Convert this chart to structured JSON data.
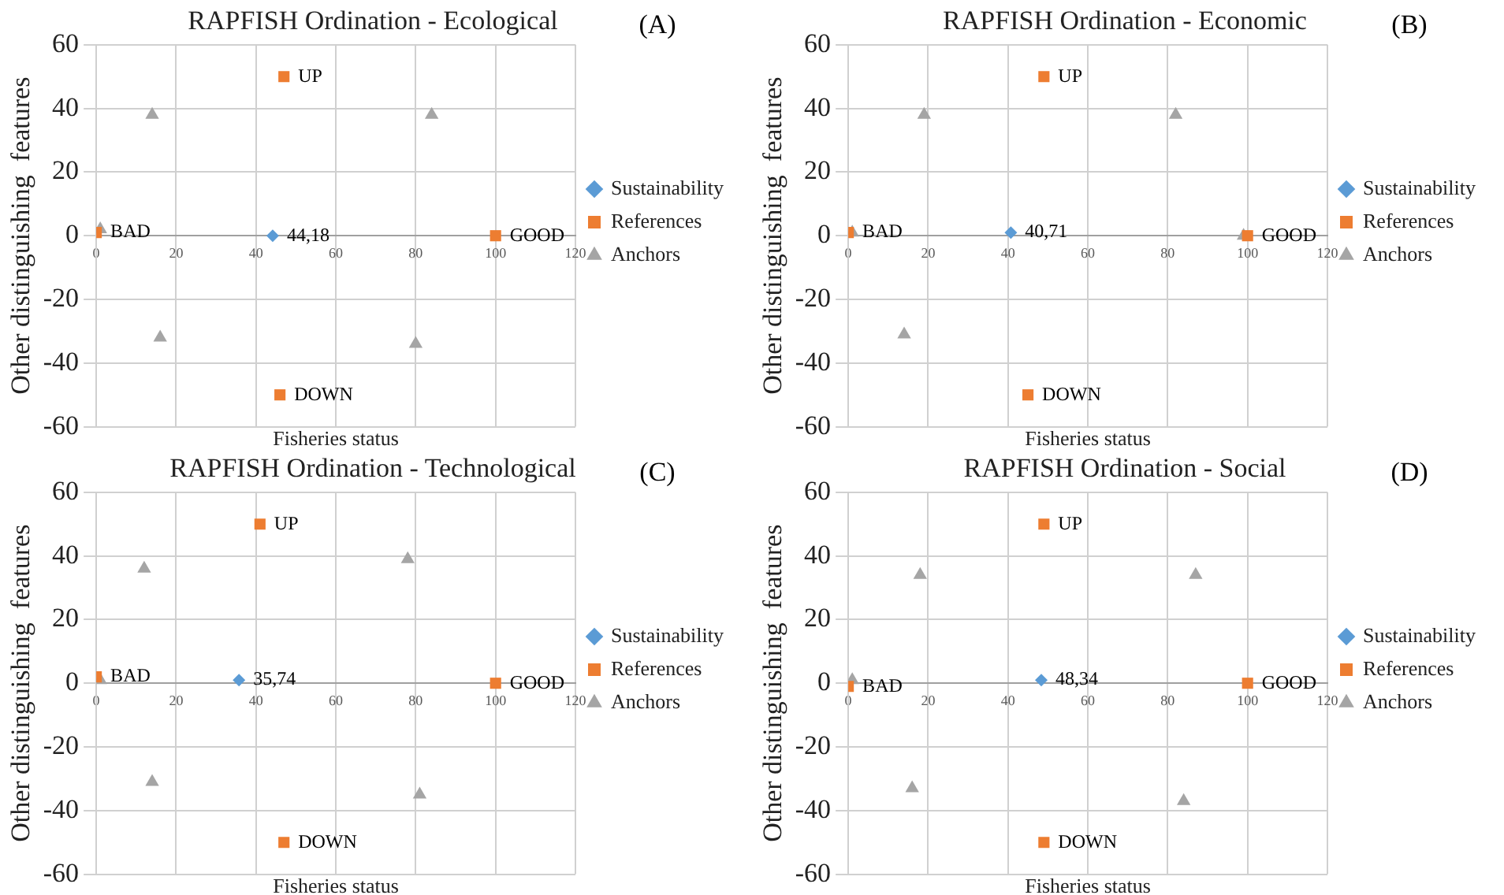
{
  "chart_data": [
    {
      "type": "scatter",
      "title": "RAPFISH Ordination - Ecological",
      "xlabel": "Fisheries status",
      "ylabel": "Other distinguishing  features",
      "xlim": [
        0,
        120
      ],
      "xticks": [
        0,
        20,
        40,
        60,
        80,
        100,
        120
      ],
      "ylim": [
        -60,
        60
      ],
      "yticks": [
        -60,
        -40,
        -20,
        0,
        20,
        40,
        60
      ],
      "grid": true,
      "legend": "right",
      "series": [
        {
          "name": "Sustainability",
          "color": "#5b9bd5",
          "marker": "diamond",
          "x": [
            44.18
          ],
          "values": [
            0
          ]
        },
        {
          "name": "References",
          "color": "#ed7d31",
          "marker": "square",
          "x": [
            0,
            100,
            47,
            46
          ],
          "values": [
            1,
            0,
            50,
            -50
          ]
        },
        {
          "name": "Anchors",
          "color": "#a5a5a5",
          "marker": "triangle",
          "x": [
            1,
            14,
            84,
            16,
            80
          ],
          "values": [
            2,
            38,
            38,
            -32,
            -34
          ]
        }
      ],
      "annotations": [
        "(A)",
        {
          "text": "44,18",
          "x": 44.18,
          "y": 0
        },
        {
          "text": "BAD",
          "x": 0,
          "y": 1
        },
        {
          "text": "GOOD",
          "x": 100,
          "y": 0
        },
        {
          "text": "UP",
          "x": 47,
          "y": 50
        },
        {
          "text": "DOWN",
          "x": 46,
          "y": -50
        }
      ]
    },
    {
      "type": "scatter",
      "title": "RAPFISH Ordination - Economic",
      "xlabel": "Fisheries status",
      "ylabel": "Other distinguishing  features",
      "xlim": [
        0,
        120
      ],
      "xticks": [
        0,
        20,
        40,
        60,
        80,
        100,
        120
      ],
      "ylim": [
        -60,
        60
      ],
      "yticks": [
        -60,
        -40,
        -20,
        0,
        20,
        40,
        60
      ],
      "grid": true,
      "legend": "right",
      "series": [
        {
          "name": "Sustainability",
          "color": "#5b9bd5",
          "marker": "diamond",
          "x": [
            40.71
          ],
          "values": [
            1
          ]
        },
        {
          "name": "References",
          "color": "#ed7d31",
          "marker": "square",
          "x": [
            0,
            100,
            49,
            45
          ],
          "values": [
            1,
            0,
            50,
            -50
          ]
        },
        {
          "name": "Anchors",
          "color": "#a5a5a5",
          "marker": "triangle",
          "x": [
            1,
            19,
            82,
            14,
            99
          ],
          "values": [
            1,
            38,
            38,
            -31,
            0
          ]
        }
      ],
      "annotations": [
        "(B)",
        {
          "text": "40,71",
          "x": 40.71,
          "y": 1
        },
        {
          "text": "BAD",
          "x": 0,
          "y": 1
        },
        {
          "text": "GOOD",
          "x": 100,
          "y": 0
        },
        {
          "text": "UP",
          "x": 49,
          "y": 50
        },
        {
          "text": "DOWN",
          "x": 45,
          "y": -50
        }
      ]
    },
    {
      "type": "scatter",
      "title": "RAPFISH Ordination - Technological",
      "xlabel": "Fisheries status",
      "ylabel": "Other distinguishing  features",
      "xlim": [
        0,
        120
      ],
      "xticks": [
        0,
        20,
        40,
        60,
        80,
        100,
        120
      ],
      "ylim": [
        -60,
        60
      ],
      "yticks": [
        -60,
        -40,
        -20,
        0,
        20,
        40,
        60
      ],
      "grid": true,
      "legend": "right",
      "series": [
        {
          "name": "Sustainability",
          "color": "#5b9bd5",
          "marker": "diamond",
          "x": [
            35.74
          ],
          "values": [
            1
          ]
        },
        {
          "name": "References",
          "color": "#ed7d31",
          "marker": "square",
          "x": [
            0,
            100,
            41,
            47
          ],
          "values": [
            2,
            0,
            50,
            -50
          ]
        },
        {
          "name": "Anchors",
          "color": "#a5a5a5",
          "marker": "triangle",
          "x": [
            1,
            12,
            78,
            14,
            81
          ],
          "values": [
            1,
            36,
            39,
            -31,
            -35
          ]
        }
      ],
      "annotations": [
        "(C)",
        {
          "text": "35,74",
          "x": 35.74,
          "y": 1
        },
        {
          "text": "BAD",
          "x": 0,
          "y": 2
        },
        {
          "text": "GOOD",
          "x": 100,
          "y": 0
        },
        {
          "text": "UP",
          "x": 41,
          "y": 50
        },
        {
          "text": "DOWN",
          "x": 47,
          "y": -50
        }
      ]
    },
    {
      "type": "scatter",
      "title": "RAPFISH Ordination - Social",
      "xlabel": "Fisheries status",
      "ylabel": "Other distinguishing  features",
      "xlim": [
        0,
        120
      ],
      "xticks": [
        0,
        20,
        40,
        60,
        80,
        100,
        120
      ],
      "ylim": [
        -60,
        60
      ],
      "yticks": [
        -60,
        -40,
        -20,
        0,
        20,
        40,
        60
      ],
      "grid": true,
      "legend": "right",
      "series": [
        {
          "name": "Sustainability",
          "color": "#5b9bd5",
          "marker": "diamond",
          "x": [
            48.34
          ],
          "values": [
            1
          ]
        },
        {
          "name": "References",
          "color": "#ed7d31",
          "marker": "square",
          "x": [
            0,
            100,
            49,
            49
          ],
          "values": [
            -1,
            0,
            50,
            -50
          ]
        },
        {
          "name": "Anchors",
          "color": "#a5a5a5",
          "marker": "triangle",
          "x": [
            1,
            18,
            87,
            16,
            84
          ],
          "values": [
            1,
            34,
            34,
            -33,
            -37
          ]
        }
      ],
      "annotations": [
        "(D)",
        {
          "text": "48,34",
          "x": 48.34,
          "y": 1
        },
        {
          "text": "BAD",
          "x": 0,
          "y": -1
        },
        {
          "text": "GOOD",
          "x": 100,
          "y": 0
        },
        {
          "text": "UP",
          "x": 49,
          "y": 50
        },
        {
          "text": "DOWN",
          "x": 49,
          "y": -50
        }
      ]
    }
  ]
}
